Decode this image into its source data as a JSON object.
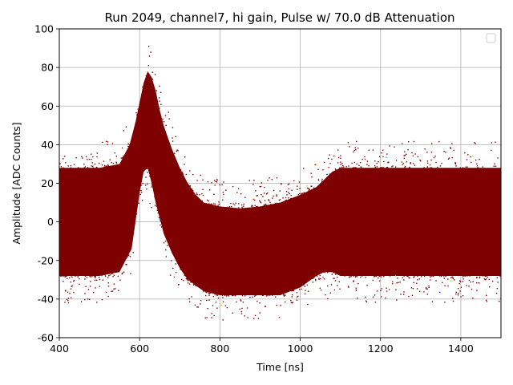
{
  "chart_data": {
    "type": "scatter",
    "title": "Run 2049, channel7, hi gain, Pulse w/ 70.0 dB Attenuation",
    "xlabel": "Time [ns]",
    "ylabel": "Amplitude [ADC Counts]",
    "xlim": [
      400,
      1500
    ],
    "ylim": [
      -60,
      100
    ],
    "x_ticks": [
      400,
      600,
      800,
      1000,
      1200,
      1400
    ],
    "y_ticks": [
      -60,
      -40,
      -20,
      0,
      20,
      40,
      60,
      80,
      100
    ],
    "grid": true,
    "legend": {
      "placement": "top-right",
      "entries": []
    },
    "colors": {
      "band": "#7f0000",
      "accent_points": [
        "#ff0000",
        "#00bfff",
        "#7fff00",
        "#ffa500",
        "#0000ff"
      ]
    },
    "series": [
      {
        "color": "#7f0000",
        "upper_envelope": {
          "x": [
            400,
            450,
            500,
            550,
            575,
            590,
            600,
            610,
            620,
            630,
            640,
            650,
            660,
            680,
            700,
            720,
            740,
            760,
            800,
            850,
            900,
            950,
            1000,
            1040,
            1060,
            1080,
            1100,
            1150,
            1200,
            1300,
            1400,
            1500
          ],
          "y": [
            28,
            28,
            28,
            30,
            40,
            52,
            62,
            72,
            78,
            75,
            68,
            58,
            50,
            38,
            28,
            20,
            14,
            10,
            8,
            7,
            8,
            10,
            14,
            18,
            22,
            26,
            28,
            28,
            28,
            28,
            28,
            28
          ]
        },
        "lower_envelope": {
          "x": [
            400,
            450,
            500,
            550,
            580,
            600,
            610,
            620,
            630,
            640,
            650,
            660,
            680,
            700,
            720,
            760,
            800,
            850,
            900,
            950,
            1000,
            1040,
            1060,
            1080,
            1100,
            1150,
            1200,
            1300,
            1400,
            1500
          ],
          "y": [
            -28,
            -28,
            -28,
            -26,
            -14,
            15,
            26,
            28,
            20,
            10,
            2,
            -6,
            -16,
            -24,
            -30,
            -36,
            -38,
            -38,
            -38,
            -38,
            -34,
            -28,
            -26,
            -26,
            -28,
            -28,
            -28,
            -28,
            -28,
            -28
          ]
        }
      }
    ]
  }
}
